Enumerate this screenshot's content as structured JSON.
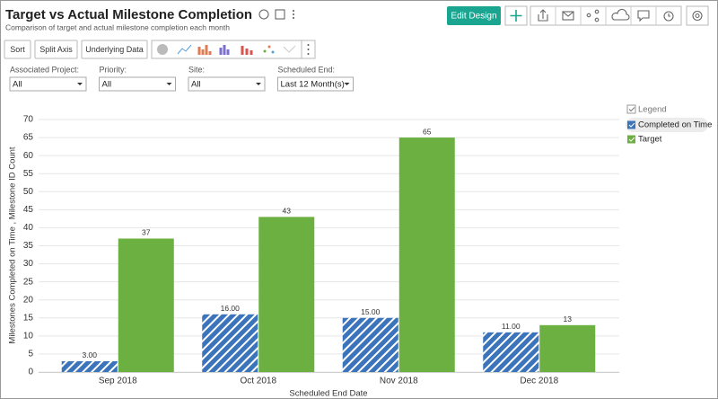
{
  "header": {
    "title": "Target vs Actual Milestone Completion",
    "subtitle": "Comparison of target and actual milestone completion each month"
  },
  "toolbar": {
    "edit_design": "Edit Design",
    "buttons": [
      "Sort",
      "Split Axis",
      "Underlying Data"
    ]
  },
  "filters": [
    {
      "label": "Associated Project:",
      "value": "All"
    },
    {
      "label": "Priority:",
      "value": "All"
    },
    {
      "label": "Site:",
      "value": "All"
    },
    {
      "label": "Scheduled End:",
      "value": "Last 12 Month(s)"
    }
  ],
  "chart_data": {
    "type": "bar",
    "x_label": "Scheduled End Date",
    "y_label": "Milestones Completed on Time , Milestone ID Count",
    "categories": [
      "Sep 2018",
      "Oct 2018",
      "Nov 2018",
      "Dec 2018"
    ],
    "series": [
      {
        "name": "Completed on Time",
        "color": "#3b74ba",
        "pattern": "hatch",
        "values": [
          3,
          16,
          15,
          11
        ],
        "value_labels": [
          "3.00",
          "16.00",
          "15.00",
          "11.00"
        ]
      },
      {
        "name": "Target",
        "color": "#6cb041",
        "values": [
          37,
          43,
          65,
          13
        ]
      }
    ],
    "ylim": [
      0,
      70
    ],
    "yticks": [
      0,
      5,
      10,
      15,
      20,
      25,
      30,
      35,
      40,
      45,
      50,
      55,
      60,
      65,
      70
    ],
    "grid": true,
    "legend": {
      "title": "Legend",
      "position": "right"
    }
  }
}
